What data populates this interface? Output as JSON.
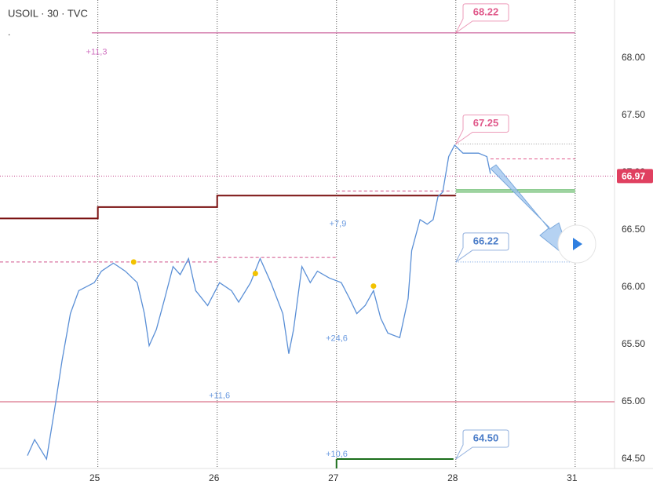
{
  "chart_data": {
    "type": "line",
    "title": "USOIL · 30 · TVC",
    "subtitle": ".",
    "xlim": [
      -0.82,
      4.33
    ],
    "ylim": [
      64.418,
      68.507
    ],
    "xticks": [
      {
        "value": 0,
        "label": "25"
      },
      {
        "value": 1,
        "label": "26"
      },
      {
        "value": 2,
        "label": "27"
      },
      {
        "value": 3,
        "label": "28"
      },
      {
        "value": 4,
        "label": "31"
      }
    ],
    "yticks": [
      {
        "value": 64.5,
        "label": "64.50"
      },
      {
        "value": 65,
        "label": "65.00"
      },
      {
        "value": 65.5,
        "label": "65.50"
      },
      {
        "value": 66,
        "label": "66.00"
      },
      {
        "value": 66.5,
        "label": "66.50"
      },
      {
        "value": 67,
        "label": "67.00"
      },
      {
        "value": 67.5,
        "label": "67.50"
      },
      {
        "value": 68,
        "label": "68.00"
      }
    ],
    "grid": "vertical",
    "series": [
      {
        "name": "USOIL",
        "color": "#5a8fd6",
        "x": [
          -0.59,
          -0.53,
          -0.43,
          -0.36,
          -0.3,
          -0.23,
          -0.16,
          -0.03,
          0.03,
          0.13,
          0.23,
          0.33,
          0.39,
          0.43,
          0.49,
          0.56,
          0.63,
          0.69,
          0.76,
          0.82,
          0.92,
          1.02,
          1.12,
          1.18,
          1.28,
          1.36,
          1.45,
          1.55,
          1.6,
          1.64,
          1.71,
          1.78,
          1.84,
          1.94,
          2.04,
          2.11,
          2.17,
          2.24,
          2.31,
          2.37,
          2.43,
          2.53,
          2.6,
          2.63,
          2.7,
          2.76,
          2.81,
          2.85,
          2.89,
          2.94,
          2.99,
          3.06,
          3.13,
          3.19,
          3.26,
          3.29
        ],
        "values": [
          64.53,
          64.67,
          64.5,
          64.95,
          65.36,
          65.77,
          65.97,
          66.04,
          66.14,
          66.21,
          66.14,
          66.04,
          65.77,
          65.49,
          65.63,
          65.9,
          66.18,
          66.11,
          66.25,
          65.97,
          65.84,
          66.04,
          65.97,
          65.87,
          66.04,
          66.25,
          66.04,
          65.77,
          65.42,
          65.63,
          66.18,
          66.04,
          66.14,
          66.08,
          66.04,
          65.9,
          65.77,
          65.84,
          65.97,
          65.73,
          65.6,
          65.56,
          65.9,
          66.32,
          66.59,
          66.55,
          66.59,
          66.79,
          66.83,
          67.14,
          67.24,
          67.17,
          67.17,
          67.17,
          67.14,
          66.99
        ]
      }
    ],
    "step_line": {
      "color": "#7a1010",
      "edges": [
        -0.82,
        0,
        1,
        3
      ],
      "values": [
        66.6,
        66.7,
        66.8
      ]
    },
    "levels": [
      {
        "value": 68.22,
        "from": -0.05,
        "to": 4,
        "color": "#c2448a",
        "style": "solid"
      },
      {
        "value": 66.97,
        "from": -0.82,
        "to": 4.33,
        "color": "#c2448a",
        "style": "dotted"
      },
      {
        "value": 65,
        "from": -0.82,
        "to": 4.33,
        "color": "#d0506e",
        "style": "solid"
      },
      {
        "value": 64.5,
        "from": 2,
        "to": 2.98,
        "color": "#1b6e1b",
        "style": "solid"
      },
      {
        "value": 66.84,
        "from": 3,
        "to": 4,
        "color": "#4caf50",
        "style": "double"
      },
      {
        "value": 66.22,
        "from": -0.82,
        "to": 1,
        "color": "#d0508a",
        "style": "dashed"
      },
      {
        "value": 66.26,
        "from": 1,
        "to": 2,
        "color": "#d0508a",
        "style": "dashed"
      },
      {
        "value": 66.84,
        "from": 2,
        "to": 2.97,
        "color": "#d0508a",
        "style": "dashed"
      },
      {
        "value": 67.12,
        "from": 3.29,
        "to": 4,
        "color": "#e0588a",
        "style": "dashed"
      },
      {
        "value": 67.25,
        "from": 3,
        "to": 4,
        "color": "#999999",
        "style": "dotted"
      },
      {
        "value": 66.22,
        "from": 3,
        "to": 4,
        "color": "#6a9ae0",
        "style": "dotted"
      }
    ],
    "callouts": [
      {
        "value": 68.22,
        "color": "#e0588a"
      },
      {
        "value": 67.25,
        "color": "#e0588a"
      },
      {
        "value": 66.22,
        "color": "#4a7cc8"
      },
      {
        "value": 64.5,
        "label": "64.50",
        "color": "#4a7cc8"
      }
    ],
    "current_price": {
      "value": 66.97,
      "color": "#e04060"
    },
    "annotations": [
      {
        "text": "+11,3",
        "x": -0.1,
        "y": 68.05,
        "color": "#d070c0"
      },
      {
        "text": "+7,9",
        "x": 1.94,
        "y": 66.55,
        "color": "#6a9ae0"
      },
      {
        "text": "+24,6",
        "x": 1.91,
        "y": 65.55,
        "color": "#6a9ae0"
      },
      {
        "text": "+11,6",
        "x": 0.93,
        "y": 65.05,
        "color": "#6a9ae0"
      },
      {
        "text": "+10,6",
        "x": 1.91,
        "y": 64.54,
        "color": "#6a9ae0"
      }
    ],
    "markers": {
      "color": "#f2c200",
      "x": [
        0.3,
        1.32,
        2.31
      ],
      "values": [
        66.22,
        66.12,
        66.01
      ]
    }
  }
}
